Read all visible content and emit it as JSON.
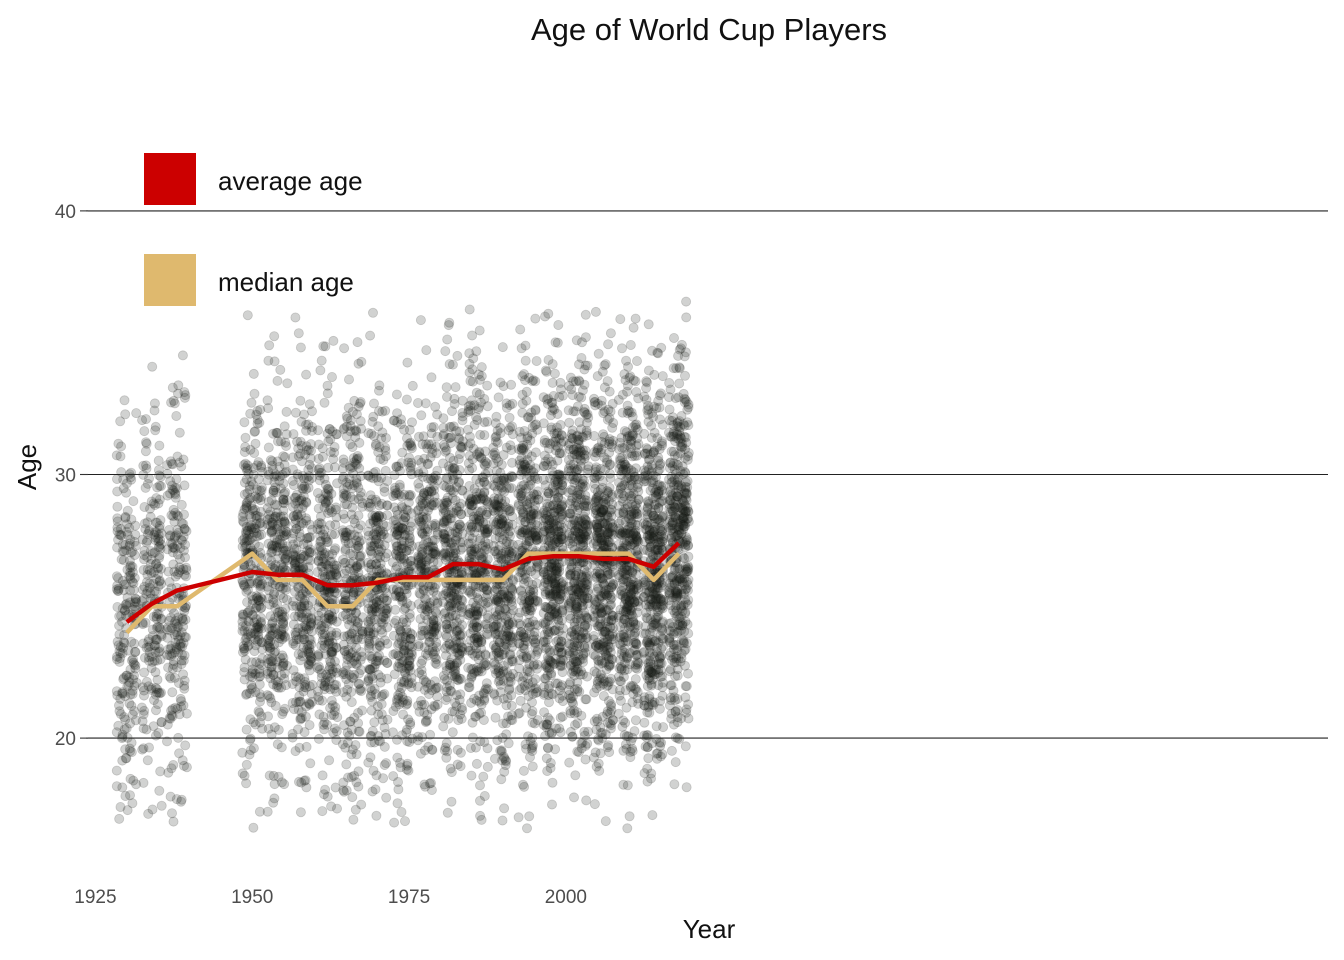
{
  "chart_data": {
    "type": "scatter",
    "title": "Age of World Cup Players",
    "xlabel": "Year",
    "ylabel": "Age",
    "xlim": [
      1923.5,
      2121.5
    ],
    "ylim": [
      15.3,
      45.8
    ],
    "x_ticks": [
      1925,
      1950,
      1975,
      2000
    ],
    "y_ticks": [
      20,
      30,
      40
    ],
    "grid": "horizontal major lines only",
    "legend_position": "top-left",
    "point_color": "#1b1e18",
    "point_opacity": 0.2,
    "tournament_years": [
      1930,
      1934,
      1938,
      1950,
      1954,
      1958,
      1962,
      1966,
      1970,
      1974,
      1978,
      1982,
      1986,
      1990,
      1994,
      1998,
      2002,
      2006,
      2010,
      2014,
      2018
    ],
    "series": [
      {
        "name": "average age",
        "type": "line",
        "color": "#cc0000",
        "x": [
          1930,
          1934,
          1938,
          1950,
          1954,
          1958,
          1962,
          1966,
          1970,
          1974,
          1978,
          1982,
          1986,
          1990,
          1994,
          1998,
          2002,
          2006,
          2010,
          2014,
          2018
        ],
        "values": [
          24.4,
          25.1,
          25.6,
          26.3,
          26.2,
          26.2,
          25.8,
          25.8,
          25.9,
          26.1,
          26.1,
          26.6,
          26.6,
          26.4,
          26.8,
          26.9,
          26.9,
          26.8,
          26.8,
          26.5,
          27.4
        ]
      },
      {
        "name": "median age",
        "type": "line",
        "color": "#dfb96e",
        "x": [
          1930,
          1934,
          1938,
          1950,
          1954,
          1958,
          1962,
          1966,
          1970,
          1974,
          1978,
          1982,
          1986,
          1990,
          1994,
          1998,
          2002,
          2006,
          2010,
          2014,
          2018
        ],
        "values": [
          24,
          25,
          25,
          27,
          26,
          26,
          25,
          25,
          26,
          26,
          26,
          26,
          26,
          26,
          27,
          27,
          27,
          27,
          27,
          26,
          27
        ]
      }
    ]
  }
}
